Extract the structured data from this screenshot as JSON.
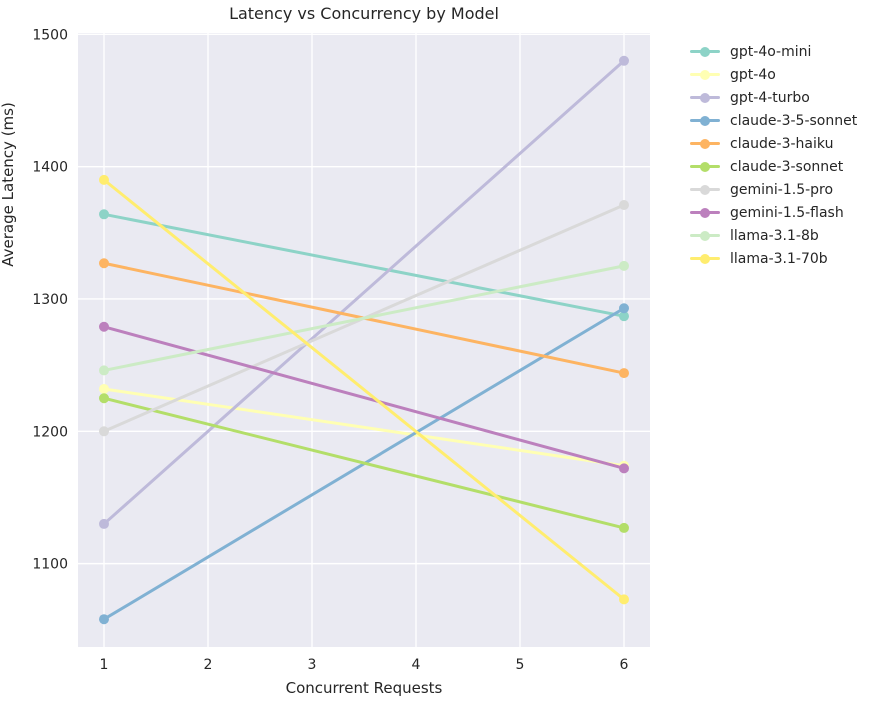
{
  "figure": {
    "title": "Latency vs Concurrency by Model",
    "background_color": "#ffffff"
  },
  "chart_data": {
    "type": "line",
    "title": "Latency vs Concurrency by Model",
    "xlabel": "Concurrent Requests",
    "ylabel": "Average Latency (ms)",
    "x": [
      1,
      6
    ],
    "xticks": [
      1,
      2,
      3,
      4,
      5,
      6
    ],
    "yticks": [
      1100,
      1200,
      1300,
      1400,
      1500
    ],
    "xlim": [
      0.75,
      6.25
    ],
    "ylim": [
      1037,
      1501
    ],
    "grid": true,
    "plot_bg_color": "#eaeaf2",
    "grid_color": "#ffffff",
    "text_color": "#262626",
    "legend_position": "right-outside",
    "markers": true,
    "series": [
      {
        "name": "gpt-4o-mini",
        "color": "#8dd3c7",
        "values": [
          1364,
          1287
        ]
      },
      {
        "name": "gpt-4o",
        "color": "#ffffb3",
        "values": [
          1232,
          1174
        ]
      },
      {
        "name": "gpt-4-turbo",
        "color": "#bebada",
        "values": [
          1130,
          1480
        ]
      },
      {
        "name": "claude-3-5-sonnet",
        "color": "#80b1d3",
        "values": [
          1058,
          1293
        ]
      },
      {
        "name": "claude-3-haiku",
        "color": "#fdb462",
        "values": [
          1327,
          1244
        ]
      },
      {
        "name": "claude-3-sonnet",
        "color": "#b3de69",
        "values": [
          1225,
          1127
        ]
      },
      {
        "name": "gemini-1.5-pro",
        "color": "#d9d9d9",
        "values": [
          1200,
          1371
        ]
      },
      {
        "name": "gemini-1.5-flash",
        "color": "#bc80bd",
        "values": [
          1279,
          1172
        ]
      },
      {
        "name": "llama-3.1-8b",
        "color": "#ccebc5",
        "values": [
          1246,
          1325
        ]
      },
      {
        "name": "llama-3.1-70b",
        "color": "#ffed6f",
        "values": [
          1390,
          1073
        ]
      }
    ]
  }
}
